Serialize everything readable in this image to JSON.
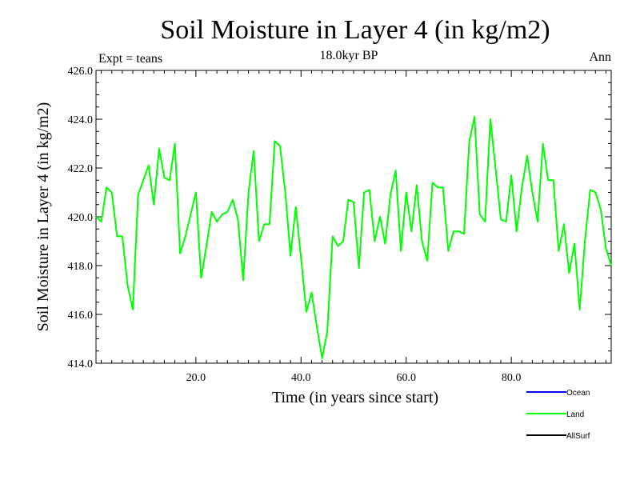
{
  "chart_data": {
    "type": "line",
    "title": "Soil Moisture in Layer 4 (in kg/m2)",
    "subtitle": "18.0kyr BP",
    "left_note": "Expt = teans",
    "right_note": "Ann",
    "xlabel": "Time (in years since start)",
    "ylabel": "Soil Moisture in Layer 4 (in kg/m2)",
    "xlim": [
      1,
      99
    ],
    "ylim": [
      414,
      426
    ],
    "x_ticks": [
      20,
      40,
      60,
      80
    ],
    "x_tick_labels": [
      "20.0",
      "40.0",
      "60.0",
      "80.0"
    ],
    "y_ticks": [
      414,
      416,
      418,
      420,
      422,
      424,
      426
    ],
    "y_tick_labels": [
      "414.0",
      "416.0",
      "418.0",
      "420.0",
      "422.0",
      "424.0",
      "426.0"
    ],
    "legend": [
      {
        "name": "Ocean",
        "color": "#0000ff"
      },
      {
        "name": "Land",
        "color": "#00ff00"
      },
      {
        "name": "AllSurf",
        "color": "#000000"
      }
    ],
    "series": [
      {
        "name": "Land",
        "color": "#00ff00",
        "x": [
          1,
          2,
          3,
          4,
          5,
          6,
          7,
          8,
          9,
          10,
          11,
          12,
          13,
          14,
          15,
          16,
          17,
          18,
          19,
          20,
          21,
          22,
          23,
          24,
          25,
          26,
          27,
          28,
          29,
          30,
          31,
          32,
          33,
          34,
          35,
          36,
          37,
          38,
          39,
          40,
          41,
          42,
          43,
          44,
          45,
          46,
          47,
          48,
          49,
          50,
          51,
          52,
          53,
          54,
          55,
          56,
          57,
          58,
          59,
          60,
          61,
          62,
          63,
          64,
          65,
          66,
          67,
          68,
          69,
          70,
          71,
          72,
          73,
          74,
          75,
          76,
          77,
          78,
          79,
          80,
          81,
          82,
          83,
          84,
          85,
          86,
          87,
          88,
          89,
          90,
          91,
          92,
          93,
          94,
          95,
          96,
          97,
          98,
          99
        ],
        "values": [
          420.0,
          419.8,
          421.2,
          421.0,
          419.2,
          419.2,
          417.2,
          416.2,
          420.9,
          421.5,
          422.1,
          420.5,
          422.8,
          421.6,
          421.5,
          423.0,
          418.5,
          419.2,
          420.1,
          421.0,
          417.5,
          418.8,
          420.2,
          419.8,
          420.1,
          420.2,
          420.7,
          419.9,
          417.4,
          421.0,
          422.7,
          419.0,
          419.7,
          419.7,
          423.1,
          422.9,
          421.0,
          418.4,
          420.4,
          418.3,
          416.1,
          416.9,
          415.5,
          414.2,
          415.3,
          419.2,
          418.8,
          419.0,
          420.7,
          420.6,
          417.9,
          421.0,
          421.1,
          419.0,
          420.0,
          418.9,
          420.9,
          421.9,
          418.6,
          421.0,
          419.4,
          421.3,
          419.0,
          418.2,
          421.4,
          421.2,
          421.2,
          418.6,
          419.4,
          419.4,
          419.3,
          423.1,
          424.1,
          420.1,
          419.8,
          424.0,
          422.0,
          419.9,
          419.8,
          421.7,
          419.4,
          421.2,
          422.5,
          421.0,
          419.8,
          423.0,
          421.5,
          421.5,
          418.6,
          419.7,
          417.7,
          418.9,
          416.2,
          419.0,
          421.1,
          421.0,
          420.3,
          418.7,
          418.0
        ]
      }
    ]
  }
}
